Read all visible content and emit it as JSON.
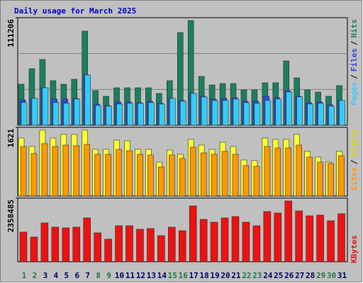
{
  "chart_data": [
    {
      "type": "bar",
      "title": "Daily usage for March 2025",
      "ylim": [
        0,
        111206
      ],
      "yticks": [
        111206
      ],
      "legend_separator": "/",
      "series": [
        {
          "name": "Hits",
          "color": "#1b7f5f",
          "values": [
            42433,
            58528,
            68039,
            46091,
            42433,
            47554,
            97303,
            35848,
            29996,
            38775,
            38775,
            38775,
            38775,
            32922,
            46091,
            95840,
            108277,
            50480,
            41701,
            43164,
            43164,
            36580,
            36580,
            43896,
            43896,
            66576,
            49017,
            36580,
            34385,
            29996,
            40970
          ]
        },
        {
          "name": "Files",
          "color": "#3047e0",
          "values": [
            26338,
            27801,
            38775,
            27069,
            27069,
            27801,
            51944,
            21948,
            20485,
            24143,
            24143,
            23411,
            24874,
            22680,
            27801,
            25606,
            32922,
            29996,
            27069,
            27801,
            28532,
            24874,
            24874,
            29996,
            28532,
            35848,
            29996,
            23411,
            24143,
            21216,
            25606
          ]
        },
        {
          "name": "Pages",
          "color": "#33ccff",
          "values": [
            23411,
            27801,
            38775,
            23411,
            22680,
            27069,
            51944,
            20485,
            19753,
            21948,
            22680,
            22680,
            23411,
            21948,
            27801,
            24874,
            32922,
            29264,
            25606,
            25606,
            27069,
            23411,
            22680,
            25606,
            27069,
            34385,
            29264,
            21948,
            22680,
            19753,
            25606
          ]
        }
      ]
    },
    {
      "type": "bar",
      "ylim": [
        0,
        1621
      ],
      "yticks": [
        1621
      ],
      "legend_separator": "/",
      "series": [
        {
          "name": "Visits",
          "color": "#ffff33",
          "values": [
            1370,
            1170,
            1554,
            1370,
            1454,
            1454,
            1554,
            1103,
            1103,
            1320,
            1303,
            1103,
            1103,
            802,
            1086,
            986,
            1337,
            1203,
            1103,
            1270,
            1170,
            852,
            836,
            1370,
            1337,
            1337,
            1454,
            1053,
            919,
            802,
            1053
          ]
        },
        {
          "name": "Sites",
          "color": "#ff9900",
          "values": [
            1170,
            1003,
            1237,
            1170,
            1203,
            1186,
            1220,
            986,
            986,
            1103,
            1069,
            986,
            969,
            685,
            969,
            886,
            1153,
            1019,
            986,
            1053,
            986,
            719,
            702,
            1170,
            1136,
            1136,
            1203,
            919,
            802,
            769,
            952
          ]
        }
      ]
    },
    {
      "type": "bar",
      "ylim": [
        0,
        2358485
      ],
      "yticks": [
        2358485
      ],
      "categories": [
        "1",
        "2",
        "3",
        "4",
        "5",
        "6",
        "7",
        "8",
        "9",
        "10",
        "11",
        "12",
        "13",
        "14",
        "15",
        "16",
        "17",
        "18",
        "19",
        "20",
        "21",
        "22",
        "23",
        "24",
        "25",
        "26",
        "27",
        "28",
        "29",
        "30",
        "31"
      ],
      "label_colors": [
        "#227744",
        "#227744",
        "#000066",
        "#000066",
        "#000066",
        "#000066",
        "#000066",
        "#227744",
        "#227744",
        "#000066",
        "#000066",
        "#000066",
        "#000066",
        "#000066",
        "#227744",
        "#227744",
        "#000066",
        "#000066",
        "#000066",
        "#000066",
        "#000066",
        "#227744",
        "#227744",
        "#000066",
        "#000066",
        "#000066",
        "#000066",
        "#000066",
        "#227744",
        "#227744",
        "#000066"
      ],
      "series": [
        {
          "name": "KBytes",
          "color": "#ee1111",
          "values": [
            1100610,
            917175,
            1441275,
            1284045,
            1257840,
            1284045,
            1624710,
            1074405,
            838560,
            1336455,
            1336455,
            1205430,
            1231635,
            969585,
            1284045,
            1153020,
            2070195,
            1572300,
            1467480,
            1624710,
            1677120,
            1467480,
            1336455,
            1860555,
            1808145,
            2253630,
            1886760,
            1703325,
            1729530,
            1519890,
            1781940
          ]
        }
      ]
    }
  ]
}
